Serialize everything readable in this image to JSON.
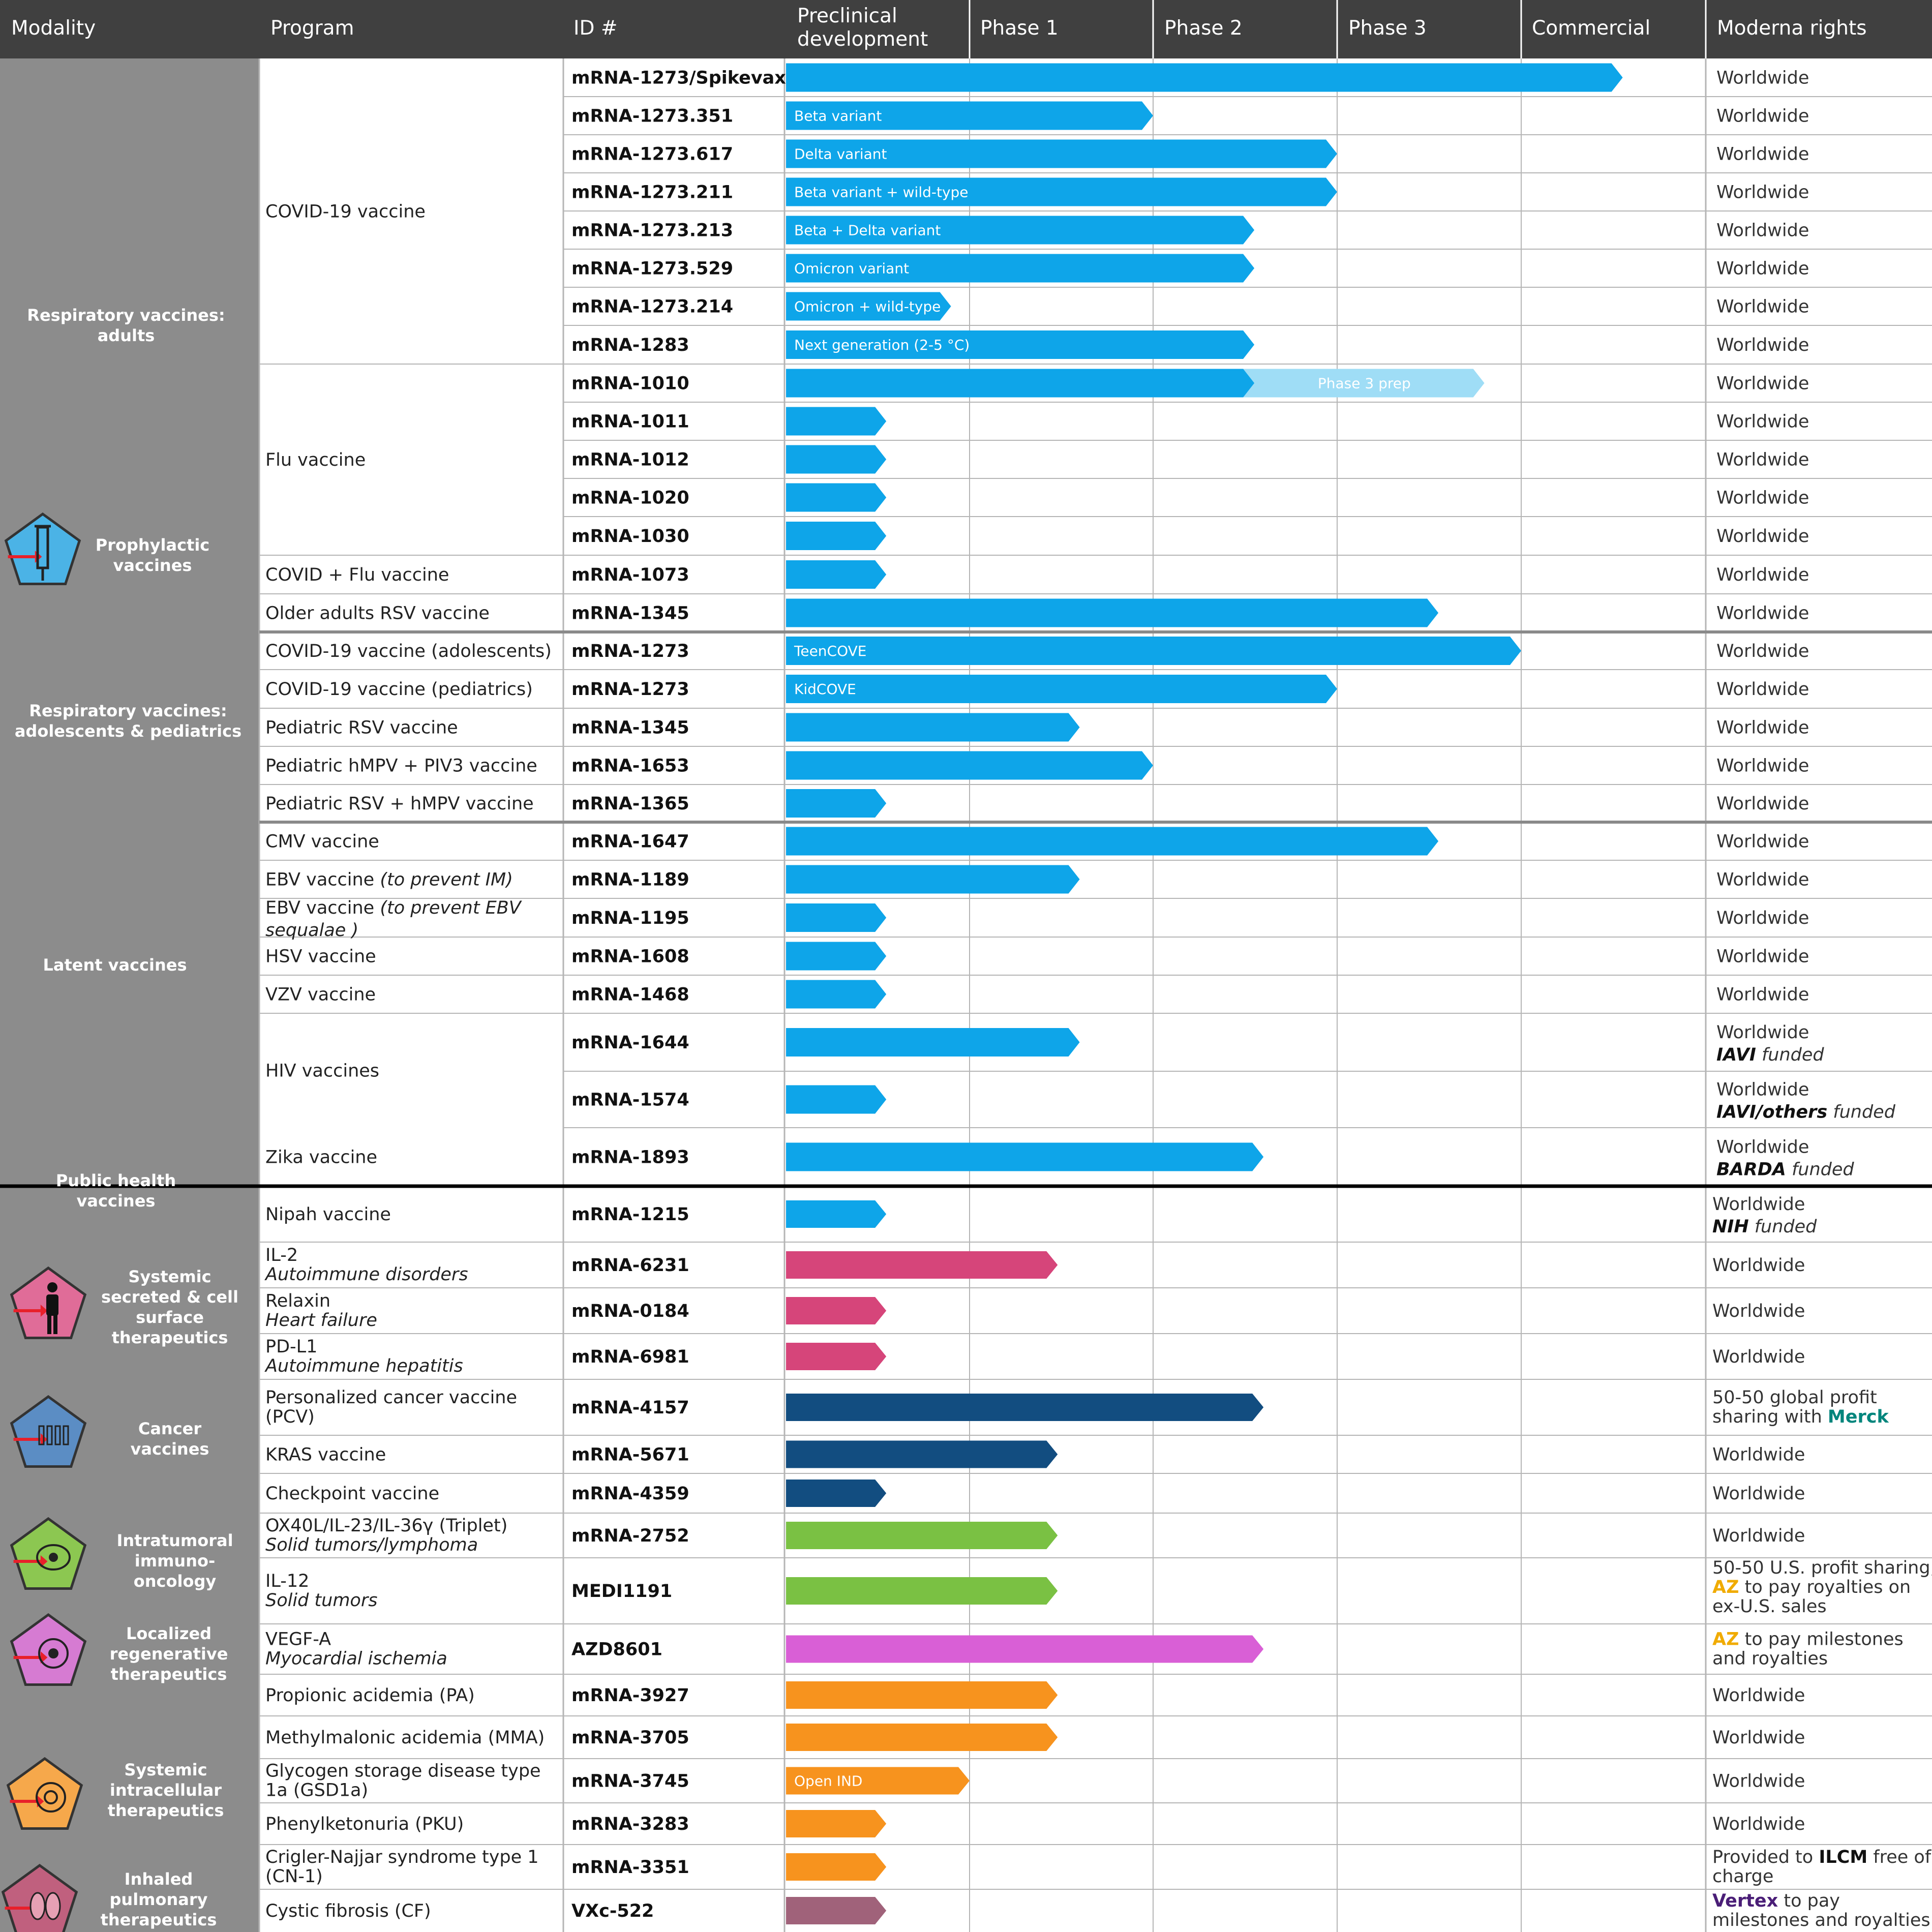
{
  "header": [
    "Modality",
    "Program",
    "ID #",
    "Preclinical development",
    "Phase 1",
    "Phase 2",
    "Phase 3",
    "Commercial",
    "Moderna rights"
  ],
  "colors": {
    "blue": "#0EA5E9",
    "pink": "#D6457A",
    "navy": "#124D80",
    "green": "#7AC143",
    "magenta": "#D95FD6",
    "orange": "#F7931E",
    "mauve": "#A0627A",
    "light": "#9FDDF6",
    "merck": "#00857C",
    "az": "#F0AB00",
    "vertex": "#4A1E77"
  },
  "modalities": [
    {
      "label": "Respiratory vaccines: adults",
      "rows": [
        0,
        12
      ]
    },
    {
      "label": "Prophylactic vaccines",
      "icon": "syringe-icon",
      "color": "#4BB3E6"
    },
    {
      "label": "Respiratory vaccines: adolescents & pediatrics",
      "rows": [
        13,
        17
      ]
    },
    {
      "label": "Latent vaccines",
      "rows": [
        18,
        25
      ]
    },
    {
      "label": "Public health vaccines",
      "rows": [
        26,
        27
      ]
    },
    {
      "label": "Systemic secreted & cell surface therapeutics",
      "icon": "person-icon",
      "color": "#E06C98",
      "rows": [
        28,
        30
      ]
    },
    {
      "label": "Cancer vaccines",
      "icon": "vials-icon",
      "color": "#5B8DC4",
      "rows": [
        31,
        33
      ]
    },
    {
      "label": "Intratumoral immuno-oncology",
      "icon": "cell-icon",
      "color": "#8CC751",
      "rows": [
        34,
        35
      ]
    },
    {
      "label": "Localized regenerative therapeutics",
      "icon": "heart-icon",
      "color": "#D67BD2",
      "rows": [
        36,
        36
      ]
    },
    {
      "label": "Systemic intracellular therapeutics",
      "icon": "cell-nucleus-icon",
      "color": "#F6A84B",
      "rows": [
        37,
        40
      ]
    },
    {
      "label": "Inhaled pulmonary therapeutics",
      "icon": "lungs-icon",
      "color": "#C0607E",
      "rows": [
        41,
        42
      ]
    }
  ],
  "chart_data": {
    "type": "table",
    "title": "",
    "stages": [
      "Preclinical development",
      "Phase 1",
      "Phase 2",
      "Phase 3",
      "Commercial"
    ],
    "rows": [
      {
        "program": "COVID-19 vaccine",
        "id": "mRNA-1273/Spikevax®",
        "stage": 4.55,
        "color": "blue",
        "rights": [
          "Worldwide"
        ]
      },
      {
        "program": "",
        "id": "mRNA-1273.351",
        "stage": 2.0,
        "color": "blue",
        "label": "Beta variant",
        "rights": [
          "Worldwide"
        ]
      },
      {
        "program": "",
        "id": "mRNA-1273.617",
        "stage": 3.0,
        "color": "blue",
        "label": "Delta variant",
        "rights": [
          "Worldwide"
        ]
      },
      {
        "program": "",
        "id": "mRNA-1273.211",
        "stage": 3.0,
        "color": "blue",
        "label": "Beta variant + wild-type",
        "rights": [
          "Worldwide"
        ]
      },
      {
        "program": "",
        "id": "mRNA-1273.213",
        "stage": 2.55,
        "color": "blue",
        "label": "Beta + Delta variant",
        "rights": [
          "Worldwide"
        ]
      },
      {
        "program": "",
        "id": "mRNA-1273.529",
        "stage": 2.55,
        "color": "blue",
        "label": "Omicron variant",
        "rights": [
          "Worldwide"
        ]
      },
      {
        "program": "",
        "id": "mRNA-1273.214",
        "stage": 0.9,
        "color": "blue",
        "label": "Omicron + wild-type",
        "rights": [
          "Worldwide"
        ]
      },
      {
        "program": "",
        "id": "mRNA-1283",
        "stage": 2.55,
        "color": "blue",
        "label": "Next generation (2-5 °C)",
        "rights": [
          "Worldwide"
        ]
      },
      {
        "program": "Flu vaccine",
        "id": "mRNA-1010",
        "stage": 2.55,
        "stage2": 3.8,
        "color": "blue",
        "label2": "Phase 3 prep",
        "rights": [
          "Worldwide"
        ]
      },
      {
        "program": "",
        "id": "mRNA-1011",
        "stage": 0.55,
        "color": "blue",
        "rights": [
          "Worldwide"
        ]
      },
      {
        "program": "",
        "id": "mRNA-1012",
        "stage": 0.55,
        "color": "blue",
        "rights": [
          "Worldwide"
        ]
      },
      {
        "program": "",
        "id": "mRNA-1020",
        "stage": 0.55,
        "color": "blue",
        "rights": [
          "Worldwide"
        ]
      },
      {
        "program": "",
        "id": "mRNA-1030",
        "stage": 0.55,
        "color": "blue",
        "rights": [
          "Worldwide"
        ]
      },
      {
        "program": "COVID + Flu vaccine",
        "id": "mRNA-1073",
        "stage": 0.55,
        "color": "blue",
        "rights": [
          "Worldwide"
        ]
      },
      {
        "program": "Older adults RSV vaccine",
        "id": "mRNA-1345",
        "stage": 3.55,
        "color": "blue",
        "rights": [
          "Worldwide"
        ]
      },
      {
        "program": "COVID-19 vaccine (adolescents)",
        "id": "mRNA-1273",
        "stage": 4.0,
        "color": "blue",
        "label": "TeenCOVE",
        "rights": [
          "Worldwide"
        ]
      },
      {
        "program": "COVID-19 vaccine (pediatrics)",
        "id": "mRNA-1273",
        "stage": 3.0,
        "color": "blue",
        "label": "KidCOVE",
        "rights": [
          "Worldwide"
        ]
      },
      {
        "program": "Pediatric RSV vaccine",
        "id": "mRNA-1345",
        "stage": 1.6,
        "color": "blue",
        "rights": [
          "Worldwide"
        ]
      },
      {
        "program": "Pediatric hMPV + PIV3 vaccine",
        "id": "mRNA-1653",
        "stage": 2.0,
        "color": "blue",
        "rights": [
          "Worldwide"
        ]
      },
      {
        "program": "Pediatric RSV + hMPV vaccine",
        "id": "mRNA-1365",
        "stage": 0.55,
        "color": "blue",
        "rights": [
          "Worldwide"
        ]
      },
      {
        "program": "CMV vaccine",
        "id": "mRNA-1647",
        "stage": 3.55,
        "color": "blue",
        "rights": [
          "Worldwide"
        ]
      },
      {
        "program": "EBV vaccine",
        "prog_it": "(to prevent IM)",
        "id": "mRNA-1189",
        "stage": 1.6,
        "color": "blue",
        "rights": [
          "Worldwide"
        ]
      },
      {
        "program": "EBV vaccine",
        "prog_it": "(to prevent EBV",
        "prog_l2_it": "sequalae )",
        "id": "mRNA-1195",
        "stage": 0.55,
        "color": "blue",
        "rights": [
          "Worldwide"
        ]
      },
      {
        "program": "HSV vaccine",
        "id": "mRNA-1608",
        "stage": 0.55,
        "color": "blue",
        "rights": [
          "Worldwide"
        ]
      },
      {
        "program": "VZV vaccine",
        "id": "mRNA-1468",
        "stage": 0.55,
        "color": "blue",
        "rights": [
          "Worldwide"
        ]
      },
      {
        "program": "HIV vaccines",
        "id": "mRNA-1644",
        "stage": 1.6,
        "color": "blue",
        "rights": [
          "Worldwide"
        ],
        "r2b": "IAVI",
        "r2i": " funded"
      },
      {
        "program": "",
        "id": "mRNA-1574",
        "stage": 0.55,
        "color": "blue",
        "rights": [
          "Worldwide"
        ],
        "r2b": "IAVI/others",
        "r2i": " funded"
      },
      {
        "program": "Zika vaccine",
        "id": "mRNA-1893",
        "stage": 2.6,
        "color": "blue",
        "rights": [
          "Worldwide"
        ],
        "r2b": "BARDA",
        "r2i": " funded"
      },
      {
        "program": "Nipah vaccine",
        "id": "mRNA-1215",
        "stage": 0.55,
        "color": "blue",
        "rights": [
          "Worldwide"
        ],
        "r2b": "NIH",
        "r2i": " funded"
      },
      {
        "program": "IL-2",
        "prog2_it": "Autoimmune disorders",
        "id": "mRNA-6231",
        "stage": 1.48,
        "color": "pink",
        "rights": [
          "Worldwide"
        ]
      },
      {
        "program": "Relaxin",
        "prog2_it": "Heart failure",
        "id": "mRNA-0184",
        "stage": 0.55,
        "color": "pink",
        "rights": [
          "Worldwide"
        ]
      },
      {
        "program": "PD-L1",
        "prog2_it": "Autoimmune hepatitis",
        "id": "mRNA-6981",
        "stage": 0.55,
        "color": "pink",
        "rights": [
          "Worldwide"
        ]
      },
      {
        "program": "Personalized cancer vaccine",
        "prog2": "(PCV)",
        "id": "mRNA-4157",
        "stage": 2.6,
        "color": "navy",
        "rights": [
          "50-50 global profit"
        ],
        "r2": "sharing with ",
        "r2merck": "Merck"
      },
      {
        "program": "KRAS vaccine",
        "id": "mRNA-5671",
        "stage": 1.48,
        "color": "navy",
        "rights": [
          "Worldwide"
        ]
      },
      {
        "program": "Checkpoint vaccine",
        "id": "mRNA-4359",
        "stage": 0.55,
        "color": "navy",
        "rights": [
          "Worldwide"
        ]
      },
      {
        "program": "OX40L/IL-23/IL-36γ (Triplet)",
        "prog2_it": "Solid tumors/lymphoma",
        "id": "mRNA-2752",
        "stage": 1.48,
        "color": "green",
        "rights": [
          "Worldwide"
        ]
      },
      {
        "program": "IL-12",
        "prog2_it": "Solid tumors",
        "id": "MEDI1191",
        "stage": 1.48,
        "color": "green",
        "rights": [
          "50-50 U.S. profit sharing;"
        ],
        "r2az": "AZ",
        "r2": " to pay royalties on",
        "r3": "ex-U.S. sales"
      },
      {
        "program": "VEGF-A",
        "prog2_it": "Myocardial ischemia",
        "id": "AZD8601",
        "stage": 2.6,
        "color": "magenta",
        "rights": [
          ""
        ],
        "r1az": "AZ",
        "r1": " to pay milestones",
        "r2": "and royalties"
      },
      {
        "program": "Propionic acidemia (PA)",
        "id": "mRNA-3927",
        "stage": 1.48,
        "color": "orange",
        "rights": [
          "Worldwide"
        ]
      },
      {
        "program": "Methylmalonic acidemia (MMA)",
        "id": "mRNA-3705",
        "stage": 1.48,
        "color": "orange",
        "rights": [
          "Worldwide"
        ]
      },
      {
        "program": "Glycogen storage disease type",
        "prog2": "1a (GSD1a)",
        "id": "mRNA-3745",
        "stage": 1.0,
        "color": "orange",
        "label": "Open IND",
        "rights": [
          "Worldwide"
        ]
      },
      {
        "program": "Phenylketonuria (PKU)",
        "id": "mRNA-3283",
        "stage": 0.55,
        "color": "orange",
        "rights": [
          "Worldwide"
        ]
      },
      {
        "program": "Crigler-Najjar syndrome type 1",
        "prog2": "(CN-1)",
        "id": "mRNA-3351",
        "stage": 0.55,
        "color": "orange",
        "rights": [
          ""
        ],
        "r1pre": "Provided to ",
        "r1b": "ILCM",
        "r1": " free of",
        "r2": "charge"
      },
      {
        "program": "Cystic fibrosis (CF)",
        "id": "VXc-522",
        "stage": 0.55,
        "color": "mauve",
        "rights": [
          ""
        ],
        "r1vx": "Vertex",
        "r1": " to pay",
        "r2": "milestones and royalties"
      }
    ]
  }
}
